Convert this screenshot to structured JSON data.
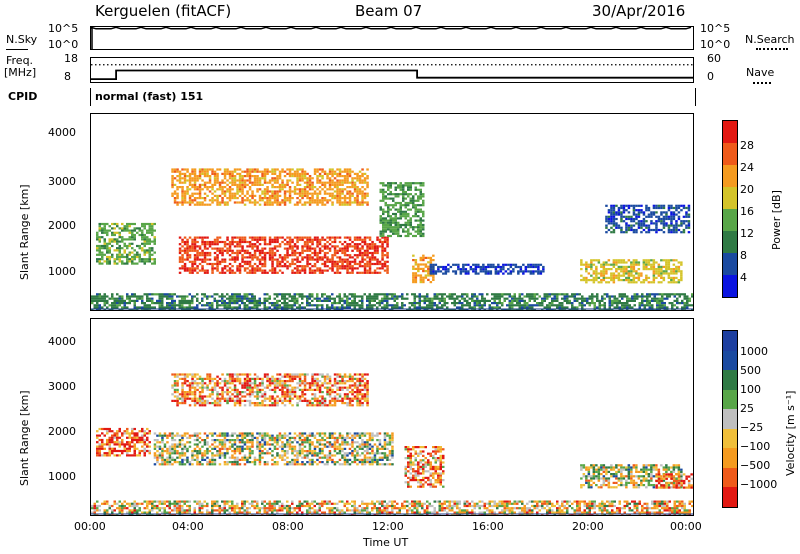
{
  "header": {
    "station": "Kerguelen (fitACF)",
    "beam": "Beam 07",
    "date": "30/Apr/2016"
  },
  "top_panels": {
    "nsky_label": "N.Sky",
    "nsearch_label": "N.Search",
    "nsky_ticks": [
      "10^5",
      "10^0"
    ],
    "nsearch_ticks": [
      "10^5",
      "10^0"
    ],
    "freq_label_1": "Freq.",
    "freq_label_2": "[MHz]",
    "freq_ticks": [
      "18",
      "8"
    ],
    "nave_label": "Nave",
    "nave_ticks": [
      "60",
      "0"
    ],
    "cpid_label": "CPID",
    "cpid_text": "normal (fast) 151"
  },
  "colors": {
    "power": [
      "#0a14e0",
      "#1a4aa0",
      "#2f7a44",
      "#58a648",
      "#d4c429",
      "#f59b20",
      "#ef5a1a",
      "#e21812"
    ],
    "velocity": [
      "#e21812",
      "#ef5a1a",
      "#f59b20",
      "#f0bf3a",
      "#bfbfbf",
      "#58a648",
      "#2f7a44",
      "#1a4aa0",
      "#1d3fa0"
    ]
  },
  "chart_data": [
    {
      "type": "heatmap",
      "name": "power",
      "ylabel": "Slant Range [km]",
      "yticks": [
        "4000",
        "3000",
        "2000",
        "1000"
      ],
      "ylim": [
        180,
        4500
      ],
      "xlim": [
        0,
        24
      ],
      "colorbar_label": "Power [dB]",
      "colorbar_ticks": [
        "28",
        "24",
        "20",
        "16",
        "12",
        "8",
        "4"
      ],
      "clim": [
        0,
        32
      ],
      "regions": [
        {
          "t0": 3.5,
          "t1": 11.8,
          "r0": 1000,
          "r1": 1800,
          "v": 28
        },
        {
          "t0": 3.2,
          "t1": 11.0,
          "r0": 2500,
          "r1": 3300,
          "v": 22
        },
        {
          "t0": 0.2,
          "t1": 2.5,
          "r0": 1200,
          "r1": 2100,
          "v": 14
        },
        {
          "t0": 11.5,
          "t1": 13.2,
          "r0": 1800,
          "r1": 3000,
          "v": 13
        },
        {
          "t0": 12.8,
          "t1": 13.6,
          "r0": 800,
          "r1": 1400,
          "v": 22
        },
        {
          "t0": 19.5,
          "t1": 23.5,
          "r0": 800,
          "r1": 1300,
          "v": 18
        },
        {
          "t0": 20.5,
          "t1": 23.8,
          "r0": 1900,
          "r1": 2500,
          "v": 6
        },
        {
          "t0": 13.5,
          "t1": 18.0,
          "r0": 1000,
          "r1": 1200,
          "v": 5
        },
        {
          "t0": 0.0,
          "t1": 24.0,
          "r0": 200,
          "r1": 550,
          "v": 10
        }
      ]
    },
    {
      "type": "heatmap",
      "name": "velocity",
      "ylabel": "Slant Range [km]",
      "yticks": [
        "4000",
        "3000",
        "2000",
        "1000"
      ],
      "ylim": [
        180,
        4500
      ],
      "xlim": [
        0,
        24
      ],
      "xlabel": "Time UT",
      "xticks": [
        "00:00",
        "04:00",
        "08:00",
        "12:00",
        "16:00",
        "20:00",
        "00:00"
      ],
      "colorbar_label": "Velocity [m s⁻¹]",
      "colorbar_ticks": [
        "1000",
        "500",
        "100",
        "25",
        "−25",
        "−100",
        "−500",
        "−1000"
      ],
      "regions": [
        {
          "t0": 2.5,
          "t1": 12.0,
          "r0": 1300,
          "r1": 2000,
          "v": 0
        },
        {
          "t0": 3.2,
          "t1": 11.0,
          "r0": 2600,
          "r1": 3300,
          "v": -2
        },
        {
          "t0": 0.2,
          "t1": 2.3,
          "r0": 1500,
          "r1": 2100,
          "v": -3
        },
        {
          "t0": 12.5,
          "t1": 14.0,
          "r0": 800,
          "r1": 1700,
          "v": -2
        },
        {
          "t0": 19.5,
          "t1": 23.5,
          "r0": 800,
          "r1": 1300,
          "v": 0
        },
        {
          "t0": 22.5,
          "t1": 24.0,
          "r0": 800,
          "r1": 1100,
          "v": -3
        },
        {
          "t0": 0.0,
          "t1": 24.0,
          "r0": 200,
          "r1": 500,
          "v": -1
        }
      ]
    }
  ],
  "timeseries": {
    "nsky_level": 0.92,
    "freq_segments": [
      {
        "t0": 0.0,
        "t1": 1.0,
        "f": 9.2
      },
      {
        "t0": 1.0,
        "t1": 13.0,
        "f": 12.8
      },
      {
        "t0": 13.0,
        "t1": 24.0,
        "f": 9.8
      }
    ],
    "nave_level": 0.72
  }
}
